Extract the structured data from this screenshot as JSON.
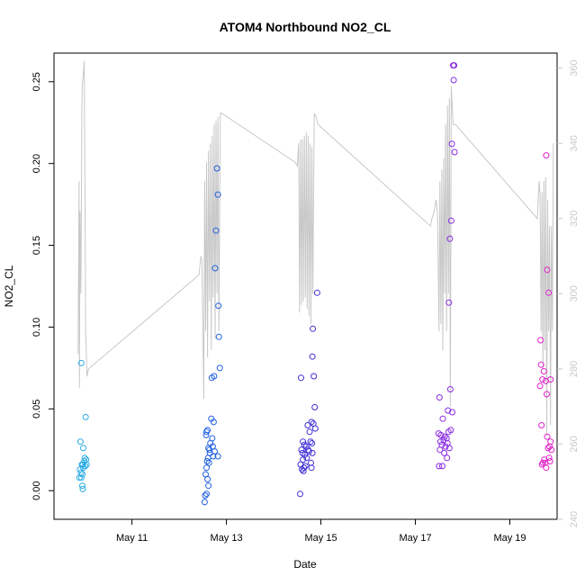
{
  "chart_data": {
    "type": "scatter",
    "title": "ATOM4 Northbound NO2_CL",
    "xlabel": "Date",
    "ylabel": "NO2_CL",
    "x_ticks": [
      "May 11",
      "May 13",
      "May 15",
      "May 17",
      "May 19"
    ],
    "x_tick_days": [
      11,
      13,
      15,
      17,
      19
    ],
    "xlim": [
      9.35,
      20.0
    ],
    "ylim": [
      -0.0175,
      0.2675
    ],
    "y_ticks": [
      0.0,
      0.05,
      0.1,
      0.15,
      0.2,
      0.25
    ],
    "y_tick_labels": [
      "0.00",
      "0.05",
      "0.10",
      "0.15",
      "0.20",
      "0.25"
    ],
    "y2lim": [
      240,
      364
    ],
    "y2_ticks": [
      240,
      260,
      280,
      300,
      320,
      340,
      360
    ],
    "y2_tick_labels": [
      "240",
      "260",
      "280",
      "300",
      "320",
      "340",
      "360"
    ],
    "grid": false,
    "legend": "none",
    "colors": {
      "flight_1": "#29abe2",
      "flight_2": "#1f5fe0",
      "flight_3": "#3f2fd6",
      "flight_4": "#8a2be2",
      "flight_5": "#e020c8",
      "secondary_line": "#c8c8c8"
    },
    "point_groups": [
      {
        "color": "#29abe2",
        "points": [
          [
            9.93,
            0.078
          ],
          [
            10.02,
            0.045
          ],
          [
            9.91,
            0.03
          ],
          [
            9.97,
            0.026
          ],
          [
            10.0,
            0.02
          ],
          [
            10.03,
            0.019
          ],
          [
            9.99,
            0.018
          ],
          [
            9.96,
            0.016
          ],
          [
            10.04,
            0.016
          ],
          [
            9.94,
            0.016
          ],
          [
            10.01,
            0.015
          ],
          [
            9.97,
            0.014
          ],
          [
            9.9,
            0.013
          ],
          [
            9.92,
            0.011
          ],
          [
            9.95,
            0.01
          ],
          [
            9.89,
            0.008
          ],
          [
            9.93,
            0.008
          ],
          [
            9.95,
            0.003
          ],
          [
            9.96,
            0.001
          ]
        ]
      },
      {
        "color": "#1f5fe0",
        "points": [
          [
            12.8,
            0.197
          ],
          [
            12.82,
            0.181
          ],
          [
            12.78,
            0.159
          ],
          [
            12.76,
            0.136
          ],
          [
            12.83,
            0.113
          ],
          [
            12.84,
            0.094
          ],
          [
            12.86,
            0.075
          ],
          [
            12.74,
            0.07
          ],
          [
            12.69,
            0.069
          ],
          [
            12.68,
            0.044
          ],
          [
            12.73,
            0.042
          ],
          [
            12.6,
            0.037
          ],
          [
            12.58,
            0.036
          ],
          [
            12.57,
            0.034
          ],
          [
            12.7,
            0.032
          ],
          [
            12.66,
            0.029
          ],
          [
            12.71,
            0.027
          ],
          [
            12.62,
            0.026
          ],
          [
            12.64,
            0.025
          ],
          [
            12.75,
            0.024
          ],
          [
            12.65,
            0.023
          ],
          [
            12.82,
            0.021
          ],
          [
            12.72,
            0.021
          ],
          [
            12.61,
            0.02
          ],
          [
            12.59,
            0.018
          ],
          [
            12.63,
            0.017
          ],
          [
            12.58,
            0.014
          ],
          [
            12.56,
            0.01
          ],
          [
            12.6,
            0.007
          ],
          [
            12.62,
            0.003
          ],
          [
            12.58,
            -0.002
          ],
          [
            12.55,
            -0.003
          ],
          [
            12.54,
            -0.007
          ]
        ]
      },
      {
        "color": "#3f2fd6",
        "points": [
          [
            14.92,
            0.121
          ],
          [
            14.83,
            0.099
          ],
          [
            14.82,
            0.082
          ],
          [
            14.58,
            0.069
          ],
          [
            14.85,
            0.07
          ],
          [
            14.87,
            0.051
          ],
          [
            14.8,
            0.042
          ],
          [
            14.84,
            0.041
          ],
          [
            14.72,
            0.04
          ],
          [
            14.88,
            0.038
          ],
          [
            14.76,
            0.036
          ],
          [
            14.62,
            0.03
          ],
          [
            14.78,
            0.03
          ],
          [
            14.81,
            0.029
          ],
          [
            14.65,
            0.028
          ],
          [
            14.69,
            0.027
          ],
          [
            14.73,
            0.025
          ],
          [
            14.59,
            0.025
          ],
          [
            14.75,
            0.024
          ],
          [
            14.82,
            0.023
          ],
          [
            14.61,
            0.023
          ],
          [
            14.66,
            0.022
          ],
          [
            14.7,
            0.02
          ],
          [
            14.62,
            0.019
          ],
          [
            14.79,
            0.017
          ],
          [
            14.57,
            0.016
          ],
          [
            14.67,
            0.015
          ],
          [
            14.64,
            0.014
          ],
          [
            14.8,
            0.014
          ],
          [
            14.6,
            0.013
          ],
          [
            14.63,
            0.012
          ],
          [
            14.56,
            -0.002
          ]
        ]
      },
      {
        "color": "#8a2be2",
        "points": [
          [
            17.8,
            0.26
          ],
          [
            17.82,
            0.26
          ],
          [
            17.81,
            0.251
          ],
          [
            17.77,
            0.212
          ],
          [
            17.83,
            0.207
          ],
          [
            17.73,
            0.154
          ],
          [
            17.76,
            0.165
          ],
          [
            17.71,
            0.115
          ],
          [
            17.74,
            0.062
          ],
          [
            17.51,
            0.057
          ],
          [
            17.69,
            0.049
          ],
          [
            17.78,
            0.048
          ],
          [
            17.58,
            0.044
          ],
          [
            17.49,
            0.035
          ],
          [
            17.75,
            0.037
          ],
          [
            17.7,
            0.036
          ],
          [
            17.54,
            0.034
          ],
          [
            17.62,
            0.033
          ],
          [
            17.66,
            0.032
          ],
          [
            17.53,
            0.03
          ],
          [
            17.6,
            0.031
          ],
          [
            17.68,
            0.029
          ],
          [
            17.56,
            0.028
          ],
          [
            17.64,
            0.027
          ],
          [
            17.72,
            0.026
          ],
          [
            17.52,
            0.025
          ],
          [
            17.61,
            0.023
          ],
          [
            17.67,
            0.02
          ],
          [
            17.5,
            0.015
          ],
          [
            17.57,
            0.015
          ]
        ]
      },
      {
        "color": "#e020c8",
        "points": [
          [
            19.77,
            0.205
          ],
          [
            19.79,
            0.135
          ],
          [
            19.82,
            0.121
          ],
          [
            19.65,
            0.092
          ],
          [
            19.66,
            0.077
          ],
          [
            19.72,
            0.073
          ],
          [
            19.69,
            0.068
          ],
          [
            19.86,
            0.068
          ],
          [
            19.76,
            0.067
          ],
          [
            19.64,
            0.064
          ],
          [
            19.78,
            0.059
          ],
          [
            19.67,
            0.04
          ],
          [
            19.79,
            0.033
          ],
          [
            19.86,
            0.03
          ],
          [
            19.84,
            0.027
          ],
          [
            19.81,
            0.026
          ],
          [
            19.88,
            0.025
          ],
          [
            19.83,
            0.02
          ],
          [
            19.85,
            0.018
          ],
          [
            19.73,
            0.019
          ],
          [
            19.7,
            0.017
          ],
          [
            19.75,
            0.017
          ],
          [
            19.68,
            0.016
          ],
          [
            19.77,
            0.014
          ]
        ]
      }
    ],
    "secondary_series": {
      "axis": "right",
      "x": [
        9.86,
        9.88,
        9.89,
        9.9,
        9.92,
        9.94,
        9.95,
        9.97,
        9.99,
        10.02,
        10.05,
        10.08,
        12.42,
        12.46,
        12.48,
        12.5,
        12.52,
        12.54,
        12.56,
        12.58,
        12.6,
        12.62,
        12.64,
        12.66,
        12.68,
        12.7,
        12.72,
        12.74,
        12.76,
        12.78,
        12.8,
        12.82,
        12.84,
        12.87,
        12.9,
        14.45,
        14.5,
        14.53,
        14.55,
        14.57,
        14.59,
        14.61,
        14.63,
        14.65,
        14.67,
        14.69,
        14.71,
        14.73,
        14.75,
        14.77,
        14.79,
        14.81,
        14.83,
        14.86,
        14.9,
        14.94,
        17.32,
        17.35,
        17.4,
        17.44,
        17.47,
        17.5,
        17.52,
        17.54,
        17.56,
        17.58,
        17.6,
        17.62,
        17.64,
        17.66,
        17.68,
        17.7,
        17.72,
        17.74,
        17.76,
        17.8,
        17.85,
        19.58,
        19.62,
        19.64,
        19.66,
        19.68,
        19.7,
        19.72,
        19.74,
        19.76,
        19.78,
        19.8,
        19.82,
        19.84,
        19.86,
        19.88,
        19.9,
        19.92
      ],
      "y": [
        284,
        330,
        275,
        322,
        300,
        350,
        356,
        358,
        362,
        290,
        278,
        280,
        305,
        310,
        309,
        293,
        272,
        330,
        290,
        335,
        283,
        338,
        298,
        340,
        285,
        342,
        299,
        345,
        288,
        346,
        300,
        347,
        290,
        348,
        348,
        335,
        334,
        340,
        295,
        341,
        297,
        341,
        298,
        342,
        299,
        343,
        296,
        342,
        294,
        340,
        292,
        339,
        300,
        348,
        347,
        345,
        318,
        320,
        322,
        325,
        321,
        290,
        330,
        292,
        333,
        285,
        336,
        300,
        345,
        290,
        350,
        300,
        352,
        270,
        355,
        345,
        345,
        320,
        330,
        326,
        290,
        327,
        280,
        330,
        285,
        331,
        262,
        325,
        290,
        318,
        265,
        318,
        290,
        340
      ]
    }
  }
}
